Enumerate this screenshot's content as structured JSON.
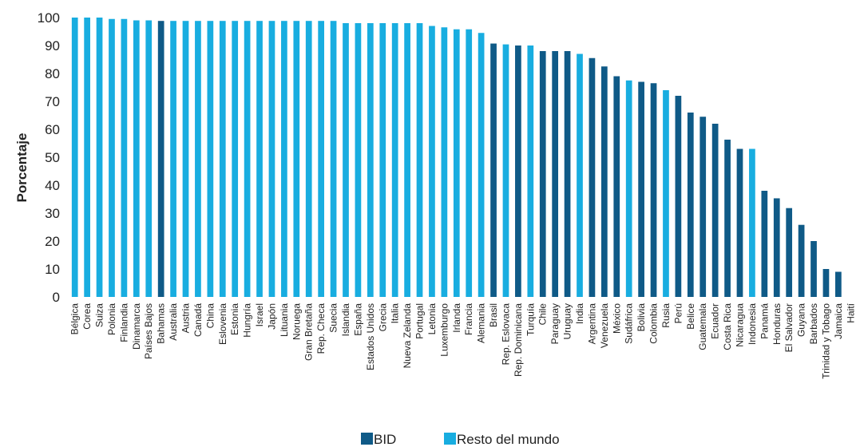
{
  "chart_data": {
    "type": "bar",
    "title": "",
    "xlabel": "",
    "ylabel": "Porcentaje",
    "ylim": [
      0,
      100
    ],
    "yticks": [
      0,
      10,
      20,
      30,
      40,
      50,
      60,
      70,
      80,
      90,
      100
    ],
    "grid": false,
    "legend_position": "bottom",
    "colors": {
      "BID": "#0f5a87",
      "Resto del mundo": "#18ade0"
    },
    "legend": [
      {
        "label": "BID",
        "color": "#0f5a87"
      },
      {
        "label": "Resto del mundo",
        "color": "#18ade0"
      }
    ],
    "categories": [
      "Bélgica",
      "Corea",
      "Suiza",
      "Polonia",
      "Finlandia",
      "Dinamarca",
      "Países Bajos",
      "Bahamas",
      "Australia",
      "Austria",
      "Canadá",
      "China",
      "Eslovenia",
      "Estonia",
      "Hungría",
      "Israel",
      "Japón",
      "Lituania",
      "Noruega",
      "Gran Bretaña",
      "Rep. Checa",
      "Suecia",
      "Islandia",
      "España",
      "Estados Unidos",
      "Grecia",
      "Italia",
      "Nueva Zelanda",
      "Portugal",
      "Letonia",
      "Luxemburgo",
      "Irlanda",
      "Francia",
      "Alemania",
      "Brasil",
      "Rep. Eslovaca",
      "Rep. Dominicana",
      "Turquía",
      "Chile",
      "Paraguay",
      "Uruguay",
      "India",
      "Argentina",
      "Venezuela",
      "México",
      "Sudáfrica",
      "Bolivia",
      "Colombia",
      "Rusia",
      "Perú",
      "Belice",
      "Guatemala",
      "Ecuador",
      "Costa Rica",
      "Nicaragua",
      "Indonesia",
      "Panamá",
      "Honduras",
      "El Salvador",
      "Guyana",
      "Barbados",
      "Trinidad y Tobago",
      "Jamaica",
      "Haití"
    ],
    "values": [
      100,
      100,
      100,
      99.5,
      99.5,
      99,
      99,
      98.8,
      98.8,
      98.8,
      98.8,
      98.8,
      98.8,
      98.8,
      98.8,
      98.8,
      98.8,
      98.8,
      98.8,
      98.8,
      98.8,
      98.8,
      98,
      98,
      98,
      98,
      98,
      98,
      98,
      97,
      96.5,
      95.8,
      95.8,
      94.5,
      90.7,
      90.4,
      90,
      90,
      88,
      88,
      88,
      87,
      85.5,
      82.5,
      79,
      77.5,
      77,
      76.5,
      74,
      72,
      66,
      64.5,
      62,
      56.3,
      53,
      53,
      38,
      35.3,
      31.8,
      25.8,
      20,
      10,
      9,
      0
    ],
    "groups": [
      "Resto del mundo",
      "Resto del mundo",
      "Resto del mundo",
      "Resto del mundo",
      "Resto del mundo",
      "Resto del mundo",
      "Resto del mundo",
      "BID",
      "Resto del mundo",
      "Resto del mundo",
      "Resto del mundo",
      "Resto del mundo",
      "Resto del mundo",
      "Resto del mundo",
      "Resto del mundo",
      "Resto del mundo",
      "Resto del mundo",
      "Resto del mundo",
      "Resto del mundo",
      "Resto del mundo",
      "Resto del mundo",
      "Resto del mundo",
      "Resto del mundo",
      "Resto del mundo",
      "Resto del mundo",
      "Resto del mundo",
      "Resto del mundo",
      "Resto del mundo",
      "Resto del mundo",
      "Resto del mundo",
      "Resto del mundo",
      "Resto del mundo",
      "Resto del mundo",
      "Resto del mundo",
      "BID",
      "Resto del mundo",
      "BID",
      "Resto del mundo",
      "BID",
      "BID",
      "BID",
      "Resto del mundo",
      "BID",
      "BID",
      "BID",
      "Resto del mundo",
      "BID",
      "BID",
      "Resto del mundo",
      "BID",
      "BID",
      "BID",
      "BID",
      "BID",
      "BID",
      "Resto del mundo",
      "BID",
      "BID",
      "BID",
      "BID",
      "BID",
      "BID",
      "BID",
      "BID"
    ]
  }
}
